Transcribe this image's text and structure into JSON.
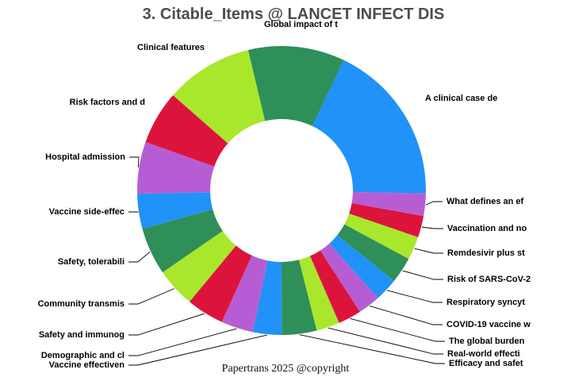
{
  "title": "3. Citable_Items @ LANCET INFECT DIS",
  "footer": "Papertrans 2025 @copyright",
  "chart_data": {
    "type": "pie",
    "subtype": "donut",
    "title": "3. Citable_Items @ LANCET INFECT DIS",
    "values_unit": "percent of ring (estimated from arc angles)",
    "start_angle_deg": -13.4,
    "direction": "clockwise",
    "legend_position": "callout-labels-around-donut",
    "palette_cycle": [
      "#2E8F58",
      "#2192F8",
      "#B75DD3",
      "#DC143C",
      "#A9E72D"
    ],
    "slices": [
      {
        "label": "Global impact of t",
        "value": 10.8,
        "color": "#2E8F58"
      },
      {
        "label": "A clinical case de",
        "value": 18.2,
        "color": "#2192F8"
      },
      {
        "label": "What defines an ef",
        "value": 2.5,
        "color": "#B75DD3"
      },
      {
        "label": "Vaccination and no",
        "value": 2.4,
        "color": "#DC143C"
      },
      {
        "label": "Remdesivir plus st",
        "value": 2.6,
        "color": "#A9E72D"
      },
      {
        "label": "Risk of SARS-CoV-2",
        "value": 2.9,
        "color": "#2E8F58"
      },
      {
        "label": "Respiratory syncyt",
        "value": 2.6,
        "color": "#2192F8"
      },
      {
        "label": "COVID-19 vaccine w",
        "value": 2.5,
        "color": "#B75DD3"
      },
      {
        "label": "The global burden",
        "value": 2.6,
        "color": "#DC143C"
      },
      {
        "label": "Real-world effecti",
        "value": 2.6,
        "color": "#A9E72D"
      },
      {
        "label": "Efficacy and safet",
        "value": 3.9,
        "color": "#2E8F58"
      },
      {
        "label": "Vaccine effectiven",
        "value": 3.2,
        "color": "#2192F8"
      },
      {
        "label": "Demographic and cl",
        "value": 3.6,
        "color": "#B75DD3"
      },
      {
        "label": "Safety and immunog",
        "value": 4.2,
        "color": "#DC143C"
      },
      {
        "label": "Community transmis",
        "value": 4.4,
        "color": "#A9E72D"
      },
      {
        "label": "Safety, tolerabili",
        "value": 5.3,
        "color": "#2E8F58"
      },
      {
        "label": "Vaccine side-effec",
        "value": 3.9,
        "color": "#2192F8"
      },
      {
        "label": "Hospital admission",
        "value": 5.8,
        "color": "#B75DD3"
      },
      {
        "label": "Risk factors and d",
        "value": 6.0,
        "color": "#DC143C"
      },
      {
        "label": "Clinical features",
        "value": 9.8,
        "color": "#A9E72D"
      }
    ]
  }
}
